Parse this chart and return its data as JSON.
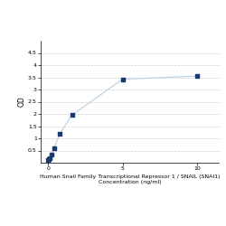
{
  "x": [
    0,
    0.05,
    0.1,
    0.2,
    0.4,
    0.8,
    1.6,
    5,
    10
  ],
  "y": [
    0.1,
    0.15,
    0.2,
    0.35,
    0.6,
    1.2,
    1.95,
    3.42,
    3.55
  ],
  "line_color": "#b8cfe0",
  "marker_color": "#1b3a6b",
  "marker_size": 12,
  "xlabel_line1": "Human Snail Family Transcriptional Repressor 1 / SNAIL (SNAI1)",
  "xlabel_line2": "Concentration (ng/ml)",
  "ylabel": "OD",
  "xlim": [
    -0.5,
    11.5
  ],
  "ylim": [
    0,
    5
  ],
  "yticks": [
    0.5,
    1.0,
    1.5,
    2.0,
    2.5,
    3.0,
    3.5,
    4.0,
    4.5
  ],
  "ytick_labels": [
    "0.5",
    "1",
    "1.5",
    "2",
    "2.5",
    "3",
    "3.5",
    "4",
    "4.5"
  ],
  "xticks": [
    0,
    5,
    10
  ],
  "xtick_labels": [
    "0",
    "5",
    "10"
  ],
  "grid_color": "#d0d0d0",
  "background_color": "#ffffff",
  "font_size_label": 4.5,
  "font_size_tick": 4.5,
  "font_size_ylabel": 5.5
}
